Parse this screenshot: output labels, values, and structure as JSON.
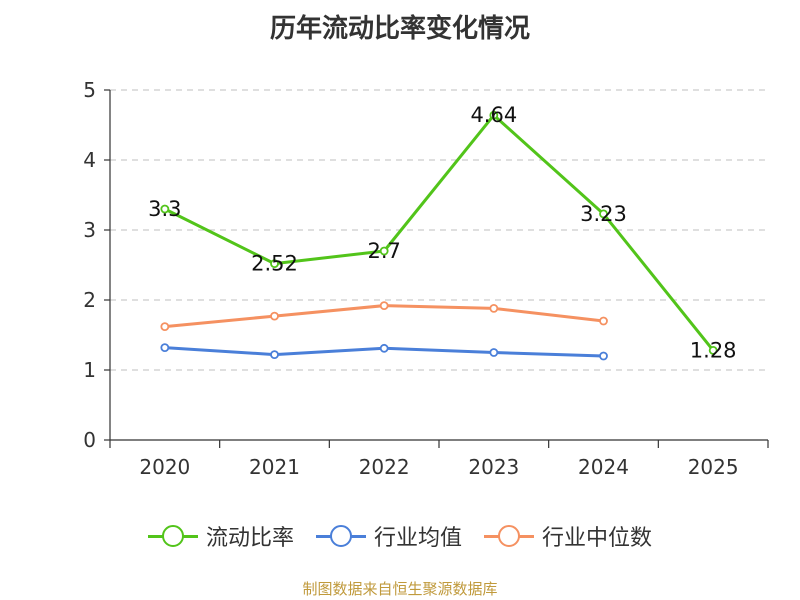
{
  "chart_data": {
    "type": "line",
    "title": "历年流动比率变化情况",
    "categories": [
      "2020",
      "2021",
      "2022",
      "2023",
      "2024",
      "2025"
    ],
    "ylim": [
      0,
      5
    ],
    "yticks": [
      0,
      1,
      2,
      3,
      4,
      5
    ],
    "grid": true,
    "legend_position": "bottom",
    "series": [
      {
        "name": "流动比率",
        "color": "#52c41a",
        "values": [
          3.3,
          2.52,
          2.7,
          4.64,
          3.23,
          1.28
        ],
        "labels": [
          "3.3",
          "2.52",
          "2.7",
          "4.64",
          "3.23",
          "1.28"
        ]
      },
      {
        "name": "行业均值",
        "color": "#4a7fd9",
        "values": [
          1.32,
          1.22,
          1.31,
          1.25,
          1.2,
          null
        ]
      },
      {
        "name": "行业中位数",
        "color": "#f59161",
        "values": [
          1.62,
          1.77,
          1.92,
          1.88,
          1.7,
          null
        ]
      }
    ]
  },
  "footer": {
    "text": "制图数据来自恒生聚源数据库",
    "color": "#c09a3c"
  }
}
